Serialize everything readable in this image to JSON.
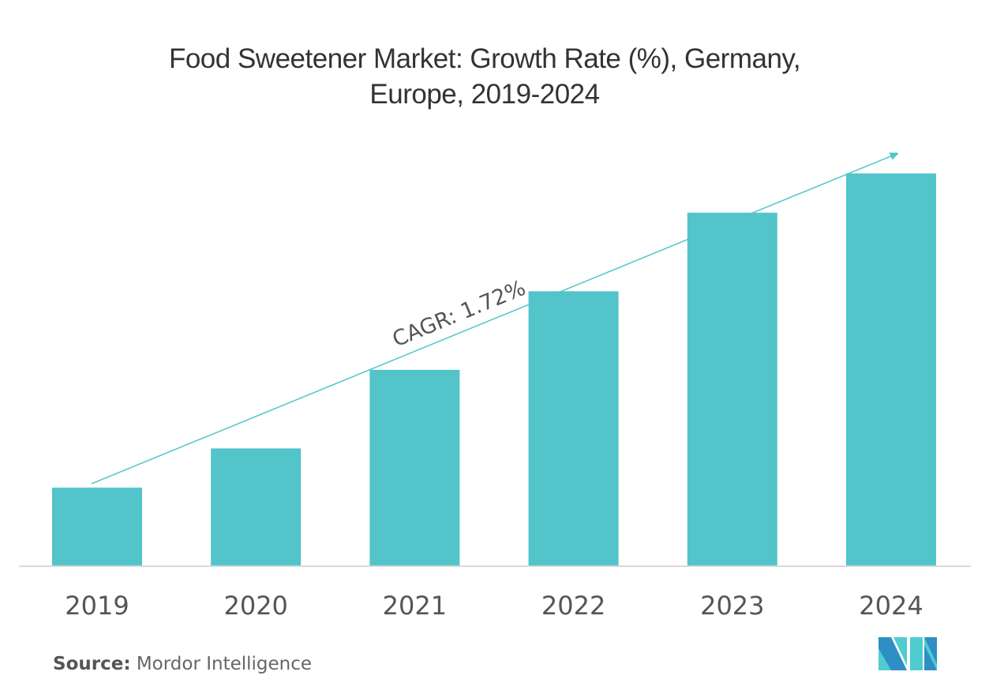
{
  "title_lines": [
    "Food Sweetener Market: Growth Rate (%), Germany,",
    "Europe, 2019-2024"
  ],
  "source": {
    "label": "Source:",
    "text": "Mordor Intelligence"
  },
  "colors": {
    "bar": "#52C4CA",
    "arrow": "#52C4CA",
    "axis": "#D9D9D9",
    "text": "#555555",
    "logo_dark": "#2F8EC4",
    "logo_light": "#4DCDD0"
  },
  "chart_data": {
    "type": "bar",
    "title": "Food Sweetener Market: Growth Rate (%), Germany, Europe, 2019-2024",
    "xlabel": "",
    "ylabel": "",
    "categories": [
      "2019",
      "2020",
      "2021",
      "2022",
      "2023",
      "2024"
    ],
    "values": [
      1.0,
      1.5,
      2.5,
      3.5,
      4.5,
      5.0
    ],
    "ylim": [
      0,
      5.3
    ],
    "y_axis_shown": false,
    "grid": false,
    "legend": "none",
    "annotations": [
      {
        "type": "trend-arrow",
        "text": "CAGR: 1.72%",
        "from": "2019",
        "to": "2024"
      }
    ]
  }
}
